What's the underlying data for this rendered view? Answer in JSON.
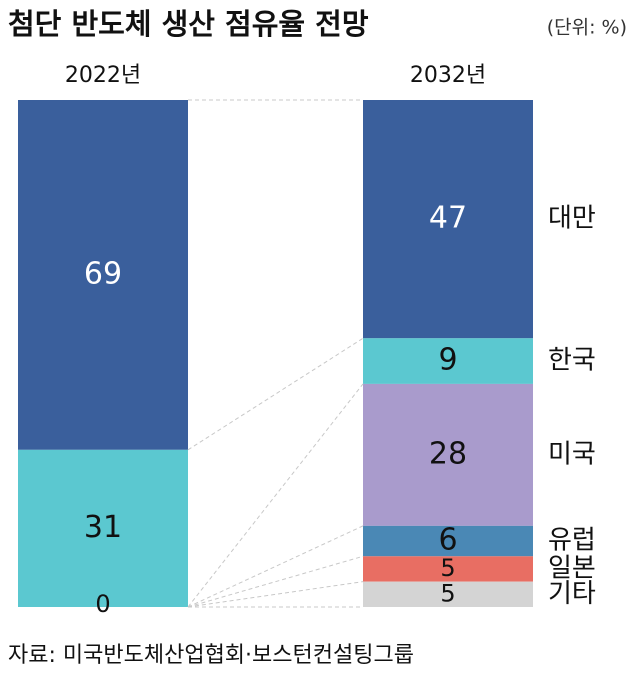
{
  "chart_data": {
    "type": "stacked-bar",
    "title": "첨단 반도체 생산 점유율 전망",
    "unit": "(단위: %)",
    "categories": [
      "2022년",
      "2032년"
    ],
    "series": [
      {
        "name": "대만",
        "color": "#3a5f9c",
        "values": [
          69,
          47
        ]
      },
      {
        "name": "한국",
        "color": "#5bc8d0",
        "values": [
          31,
          9
        ]
      },
      {
        "name": "미국",
        "color": "#a99bcc",
        "values": [
          0,
          28
        ]
      },
      {
        "name": "유럽",
        "color": "#4a88b5",
        "values": [
          null,
          6
        ]
      },
      {
        "name": "일본",
        "color": "#e86e63",
        "values": [
          null,
          5
        ]
      },
      {
        "name": "기타",
        "color": "#d4d4d4",
        "values": [
          null,
          5
        ]
      }
    ],
    "ylim": [
      0,
      100
    ],
    "source": "자료: 미국반도체산업협회·보스턴컨설팅그룹"
  }
}
